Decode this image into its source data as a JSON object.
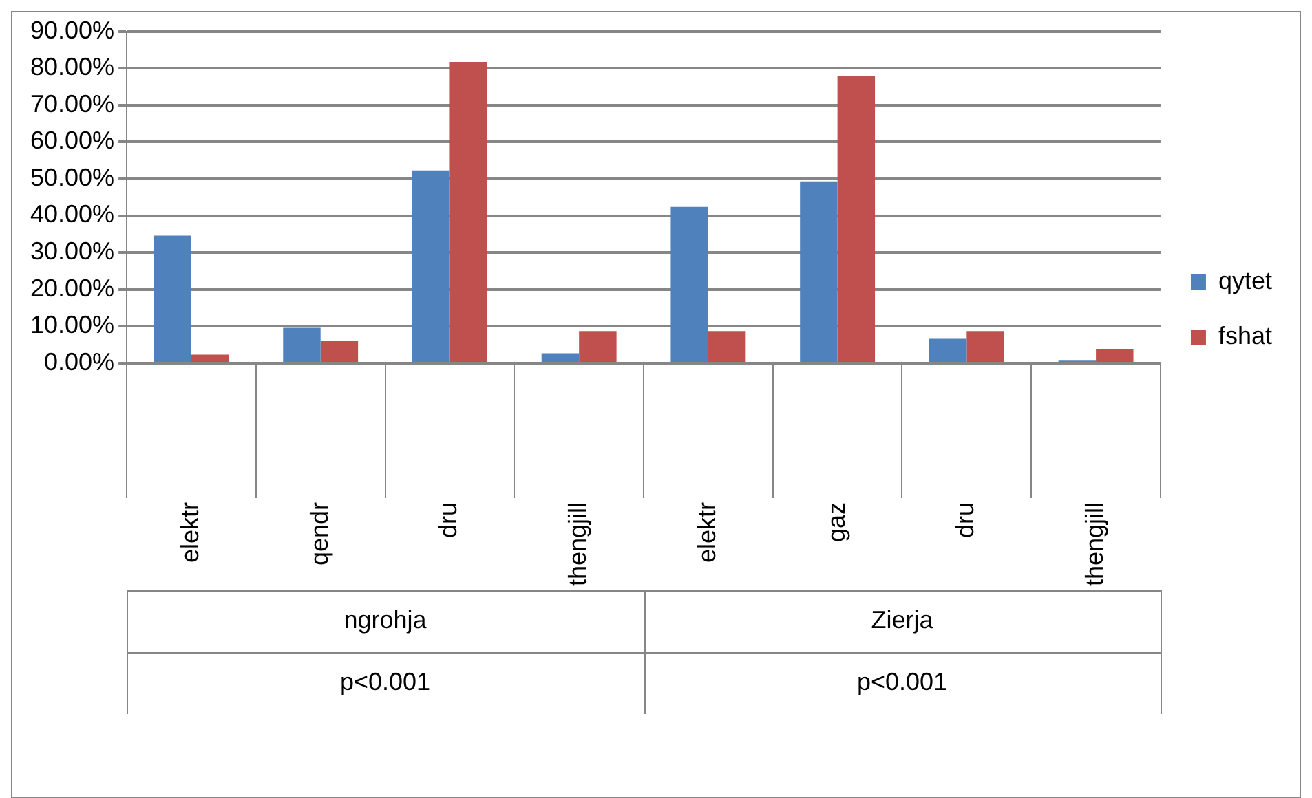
{
  "chart_data": {
    "type": "bar",
    "categories": [
      "elektr",
      "qendr",
      "dru",
      "thengjill",
      "elektr",
      "gaz",
      "dru",
      "thengjill"
    ],
    "series": [
      {
        "name": "qytet",
        "color": "#4f81bd",
        "values": [
          34.6,
          9.6,
          52.3,
          2.7,
          42.4,
          49.3,
          6.6,
          0.7
        ]
      },
      {
        "name": "fshat",
        "color": "#c0504d",
        "values": [
          2.3,
          6.1,
          81.7,
          8.7,
          8.7,
          77.8,
          8.7,
          3.7
        ]
      }
    ],
    "ylim": [
      0,
      90
    ],
    "yticks": [
      {
        "value": 0,
        "label": "0.00%"
      },
      {
        "value": 10,
        "label": "10.00%"
      },
      {
        "value": 20,
        "label": "20.00%"
      },
      {
        "value": 30,
        "label": "30.00%"
      },
      {
        "value": 40,
        "label": "40.00%"
      },
      {
        "value": 50,
        "label": "50.00%"
      },
      {
        "value": 60,
        "label": "60.00%"
      },
      {
        "value": 70,
        "label": "70.00%"
      },
      {
        "value": 80,
        "label": "80.00%"
      },
      {
        "value": 90,
        "label": "90.00%"
      }
    ],
    "annotations": [
      "ngrohja",
      "Zierja",
      "p<0.001",
      "p<0.001"
    ],
    "grid": "y",
    "legend": "right"
  }
}
